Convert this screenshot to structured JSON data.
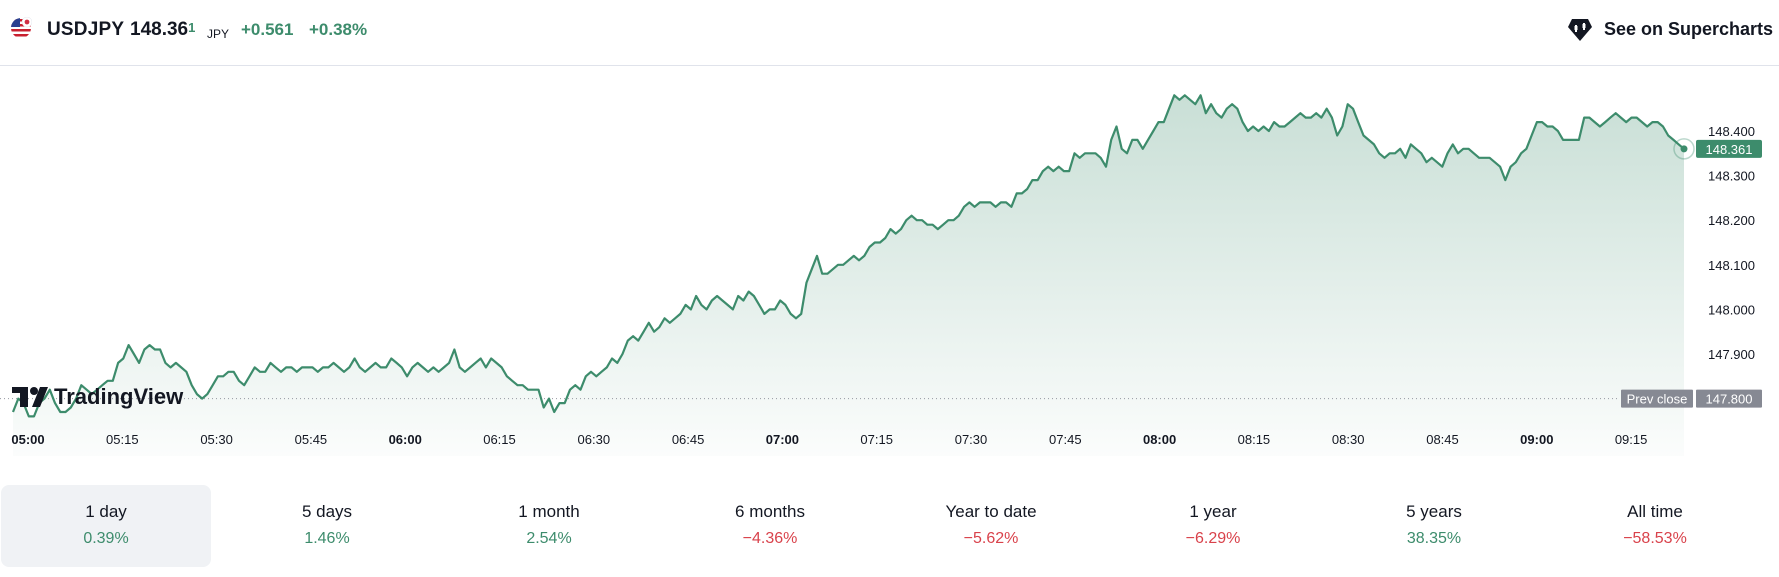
{
  "header": {
    "symbol": "USDJPY",
    "price_main": "148.36",
    "price_pip": "1",
    "currency": "JPY",
    "change": "+0.561",
    "change_percent": "+0.38%",
    "supercharts_label": "See on Supercharts",
    "flag_icon": "us-jp-flag-icon",
    "supercharts_icon": "supercharts-icon"
  },
  "colors": {
    "up": "#3d8c6c",
    "down": "#d9424b",
    "line": "#3d8c6c",
    "prev_close_tag": "#868993"
  },
  "chart_data": {
    "type": "area",
    "x_start": "05:00",
    "x_interval_minutes": 1,
    "x_ticks": [
      {
        "label": "05:00",
        "bold": true
      },
      {
        "label": "05:15",
        "bold": false
      },
      {
        "label": "05:30",
        "bold": false
      },
      {
        "label": "05:45",
        "bold": false
      },
      {
        "label": "06:00",
        "bold": true
      },
      {
        "label": "06:15",
        "bold": false
      },
      {
        "label": "06:30",
        "bold": false
      },
      {
        "label": "06:45",
        "bold": false
      },
      {
        "label": "07:00",
        "bold": true
      },
      {
        "label": "07:15",
        "bold": false
      },
      {
        "label": "07:30",
        "bold": false
      },
      {
        "label": "07:45",
        "bold": false
      },
      {
        "label": "08:00",
        "bold": true
      },
      {
        "label": "08:15",
        "bold": false
      },
      {
        "label": "08:30",
        "bold": false
      },
      {
        "label": "08:45",
        "bold": false
      },
      {
        "label": "09:00",
        "bold": true
      },
      {
        "label": "09:15",
        "bold": false
      }
    ],
    "y_ticks": [
      "147.900",
      "148.000",
      "148.100",
      "148.200",
      "148.300",
      "148.400"
    ],
    "ylim": [
      147.78,
      148.49
    ],
    "last_price_label": "148.361",
    "prev_close": 147.8,
    "prev_close_label": "Prev close",
    "prev_close_value_label": "147.800",
    "watermark": "TradingView",
    "values": [
      147.77,
      147.8,
      147.79,
      147.76,
      147.76,
      147.79,
      147.8,
      147.82,
      147.79,
      147.77,
      147.77,
      147.78,
      147.8,
      147.83,
      147.82,
      147.81,
      147.82,
      147.83,
      147.84,
      147.84,
      147.88,
      147.89,
      147.92,
      147.9,
      147.88,
      147.91,
      147.92,
      147.91,
      147.91,
      147.88,
      147.87,
      147.88,
      147.87,
      147.86,
      147.83,
      147.81,
      147.8,
      147.81,
      147.83,
      147.85,
      147.85,
      147.86,
      147.86,
      147.84,
      147.83,
      147.85,
      147.87,
      147.86,
      147.86,
      147.88,
      147.87,
      147.86,
      147.87,
      147.87,
      147.86,
      147.87,
      147.87,
      147.87,
      147.86,
      147.87,
      147.87,
      147.88,
      147.87,
      147.86,
      147.87,
      147.89,
      147.87,
      147.86,
      147.87,
      147.88,
      147.87,
      147.87,
      147.89,
      147.88,
      147.87,
      147.85,
      147.87,
      147.88,
      147.87,
      147.86,
      147.87,
      147.86,
      147.87,
      147.88,
      147.91,
      147.87,
      147.86,
      147.87,
      147.88,
      147.89,
      147.87,
      147.89,
      147.88,
      147.87,
      147.85,
      147.84,
      147.83,
      147.83,
      147.82,
      147.82,
      147.82,
      147.78,
      147.8,
      147.77,
      147.79,
      147.79,
      147.82,
      147.83,
      147.82,
      147.85,
      147.86,
      147.85,
      147.86,
      147.87,
      147.89,
      147.88,
      147.9,
      147.93,
      147.94,
      147.93,
      147.95,
      147.97,
      147.95,
      147.96,
      147.98,
      147.97,
      147.98,
      147.99,
      148.01,
      148.0,
      148.03,
      148.01,
      148.0,
      148.02,
      148.03,
      148.02,
      148.01,
      148.0,
      148.03,
      148.02,
      148.04,
      148.03,
      148.01,
      147.99,
      148.0,
      148.0,
      148.02,
      148.01,
      147.99,
      147.98,
      147.99,
      148.06,
      148.09,
      148.12,
      148.08,
      148.08,
      148.09,
      148.1,
      148.1,
      148.11,
      148.12,
      148.11,
      148.12,
      148.14,
      148.15,
      148.15,
      148.16,
      148.18,
      148.17,
      148.18,
      148.2,
      148.21,
      148.2,
      148.2,
      148.19,
      148.19,
      148.18,
      148.19,
      148.2,
      148.2,
      148.21,
      148.23,
      148.24,
      148.23,
      148.24,
      148.24,
      148.24,
      148.23,
      148.24,
      148.24,
      148.23,
      148.26,
      148.26,
      148.27,
      148.29,
      148.29,
      148.31,
      148.32,
      148.31,
      148.32,
      148.31,
      148.31,
      148.35,
      148.34,
      148.35,
      148.35,
      148.35,
      148.34,
      148.32,
      148.38,
      148.41,
      148.36,
      148.35,
      148.38,
      148.38,
      148.36,
      148.38,
      148.4,
      148.42,
      148.42,
      148.45,
      148.48,
      148.47,
      148.48,
      148.47,
      148.46,
      148.48,
      148.44,
      148.46,
      148.44,
      148.43,
      148.45,
      148.46,
      148.45,
      148.42,
      148.4,
      148.41,
      148.4,
      148.41,
      148.4,
      148.42,
      148.41,
      148.41,
      148.42,
      148.43,
      148.44,
      148.43,
      148.43,
      148.44,
      148.43,
      148.45,
      148.43,
      148.39,
      148.41,
      148.46,
      148.45,
      148.42,
      148.39,
      148.38,
      148.37,
      148.35,
      148.34,
      148.35,
      148.35,
      148.36,
      148.34,
      148.37,
      148.36,
      148.35,
      148.33,
      148.34,
      148.33,
      148.32,
      148.35,
      148.37,
      148.35,
      148.36,
      148.36,
      148.35,
      148.34,
      148.34,
      148.34,
      148.33,
      148.32,
      148.29,
      148.32,
      148.33,
      148.35,
      148.36,
      148.39,
      148.42,
      148.42,
      148.41,
      148.41,
      148.4,
      148.38,
      148.38,
      148.38,
      148.38,
      148.43,
      148.43,
      148.42,
      148.41,
      148.42,
      148.43,
      148.44,
      148.43,
      148.42,
      148.43,
      148.43,
      148.42,
      148.41,
      148.42,
      148.42,
      148.41,
      148.39,
      148.38,
      148.37,
      148.36
    ]
  },
  "periods": [
    {
      "label": "1 day",
      "value": "0.39%",
      "sign": "pos"
    },
    {
      "label": "5 days",
      "value": "1.46%",
      "sign": "pos"
    },
    {
      "label": "1 month",
      "value": "2.54%",
      "sign": "pos"
    },
    {
      "label": "6 months",
      "value": "−4.36%",
      "sign": "neg"
    },
    {
      "label": "Year to date",
      "value": "−5.62%",
      "sign": "neg"
    },
    {
      "label": "1 year",
      "value": "−6.29%",
      "sign": "neg"
    },
    {
      "label": "5 years",
      "value": "38.35%",
      "sign": "pos"
    },
    {
      "label": "All time",
      "value": "−58.53%",
      "sign": "neg"
    }
  ]
}
